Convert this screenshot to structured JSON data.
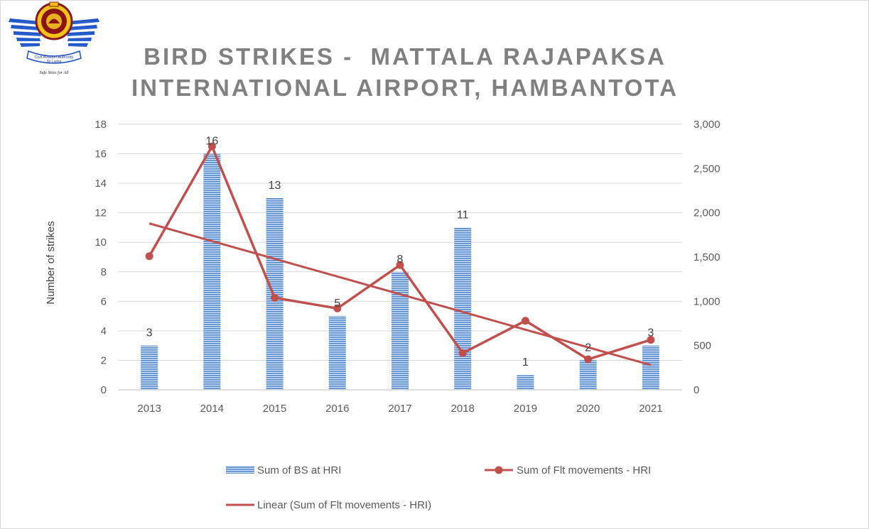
{
  "logo": {
    "org_line1": "Civil Aviation Authority",
    "org_line2": "Sri Lanka",
    "tagline": "Safe Skies for All"
  },
  "chart_data": {
    "type": "bar",
    "title_lines": [
      "BIRD STRIKES -  MATTALA RAJAPAKSA",
      "INTERNATIONAL AIRPORT, HAMBANTOTA"
    ],
    "categories": [
      "2013",
      "2014",
      "2015",
      "2016",
      "2017",
      "2018",
      "2019",
      "2020",
      "2021"
    ],
    "ylabel": "Number of strikes",
    "ylim": [
      0,
      18
    ],
    "yticks": [
      "0",
      "2",
      "4",
      "6",
      "8",
      "10",
      "12",
      "14",
      "16",
      "18"
    ],
    "y2lim": [
      0,
      3000
    ],
    "y2ticks": [
      "0",
      "500",
      "1,000",
      "1,500",
      "2,000",
      "2,500",
      "3,000"
    ],
    "grid": true,
    "legend_position": "bottom",
    "series": [
      {
        "name": "Sum of BS at HRI",
        "type": "bar",
        "axis": "left",
        "color": "#5b8fd0",
        "values": [
          3,
          16,
          13,
          5,
          8,
          11,
          1,
          2,
          3
        ],
        "data_labels": [
          "3",
          "16",
          "13",
          "5",
          "8",
          "11",
          "1",
          "2",
          "3"
        ]
      },
      {
        "name": "Sum of Flt movements - HRI",
        "type": "line",
        "axis": "right",
        "color": "#c0504d",
        "markers": true,
        "values": [
          1510,
          2750,
          1040,
          920,
          1410,
          415,
          780,
          345,
          565
        ]
      },
      {
        "name": "Linear (Sum of Flt movements - HRI)",
        "type": "trendline",
        "axis": "right",
        "color": "#c0504d",
        "from": {
          "x": "2013",
          "y": 1880
        },
        "to": {
          "x": "2021",
          "y": 280
        }
      }
    ]
  }
}
